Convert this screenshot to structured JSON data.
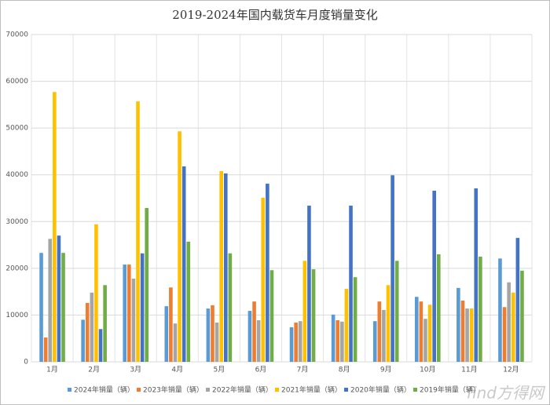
{
  "chart_data": {
    "type": "bar",
    "title": "2019-2024年国内载货车月度销量变化",
    "categories": [
      "1月",
      "2月",
      "3月",
      "4月",
      "5月",
      "6月",
      "7月",
      "8月",
      "9月",
      "10月",
      "11月",
      "12月"
    ],
    "series": [
      {
        "name": "2024年销量（辆）",
        "color": "#5b9bd5",
        "values": [
          23300,
          9000,
          20800,
          11900,
          11400,
          10900,
          7400,
          10100,
          8700,
          13900,
          15800,
          22100
        ]
      },
      {
        "name": "2023年销量（辆）",
        "color": "#ed7d31",
        "values": [
          5200,
          12600,
          20800,
          15900,
          12100,
          12900,
          8400,
          8900,
          12900,
          12900,
          13100,
          11700
        ]
      },
      {
        "name": "2022年销量（辆）",
        "color": "#a5a5a5",
        "values": [
          26300,
          14800,
          17800,
          8200,
          8400,
          8900,
          8700,
          8600,
          11100,
          9200,
          11400,
          17000
        ]
      },
      {
        "name": "2021年销量（辆）",
        "color": "#ffc000",
        "values": [
          57700,
          29400,
          55700,
          49300,
          40800,
          35100,
          21600,
          15600,
          16400,
          12200,
          11400,
          14800
        ]
      },
      {
        "name": "2020年销量（辆）",
        "color": "#4472c4",
        "values": [
          27000,
          7000,
          23200,
          41800,
          40300,
          38100,
          33400,
          33400,
          39900,
          36600,
          37100,
          26500
        ]
      },
      {
        "name": "2019年销量（辆）",
        "color": "#70ad47",
        "values": [
          23300,
          16400,
          32900,
          25700,
          23200,
          19600,
          19800,
          18100,
          21600,
          23000,
          22500,
          19500
        ]
      }
    ],
    "ylim": [
      0,
      70000
    ],
    "yticks": [
      0,
      10000,
      20000,
      30000,
      40000,
      50000,
      60000,
      70000
    ],
    "grid": true,
    "legend": "bottom",
    "watermark": "find方得网"
  }
}
